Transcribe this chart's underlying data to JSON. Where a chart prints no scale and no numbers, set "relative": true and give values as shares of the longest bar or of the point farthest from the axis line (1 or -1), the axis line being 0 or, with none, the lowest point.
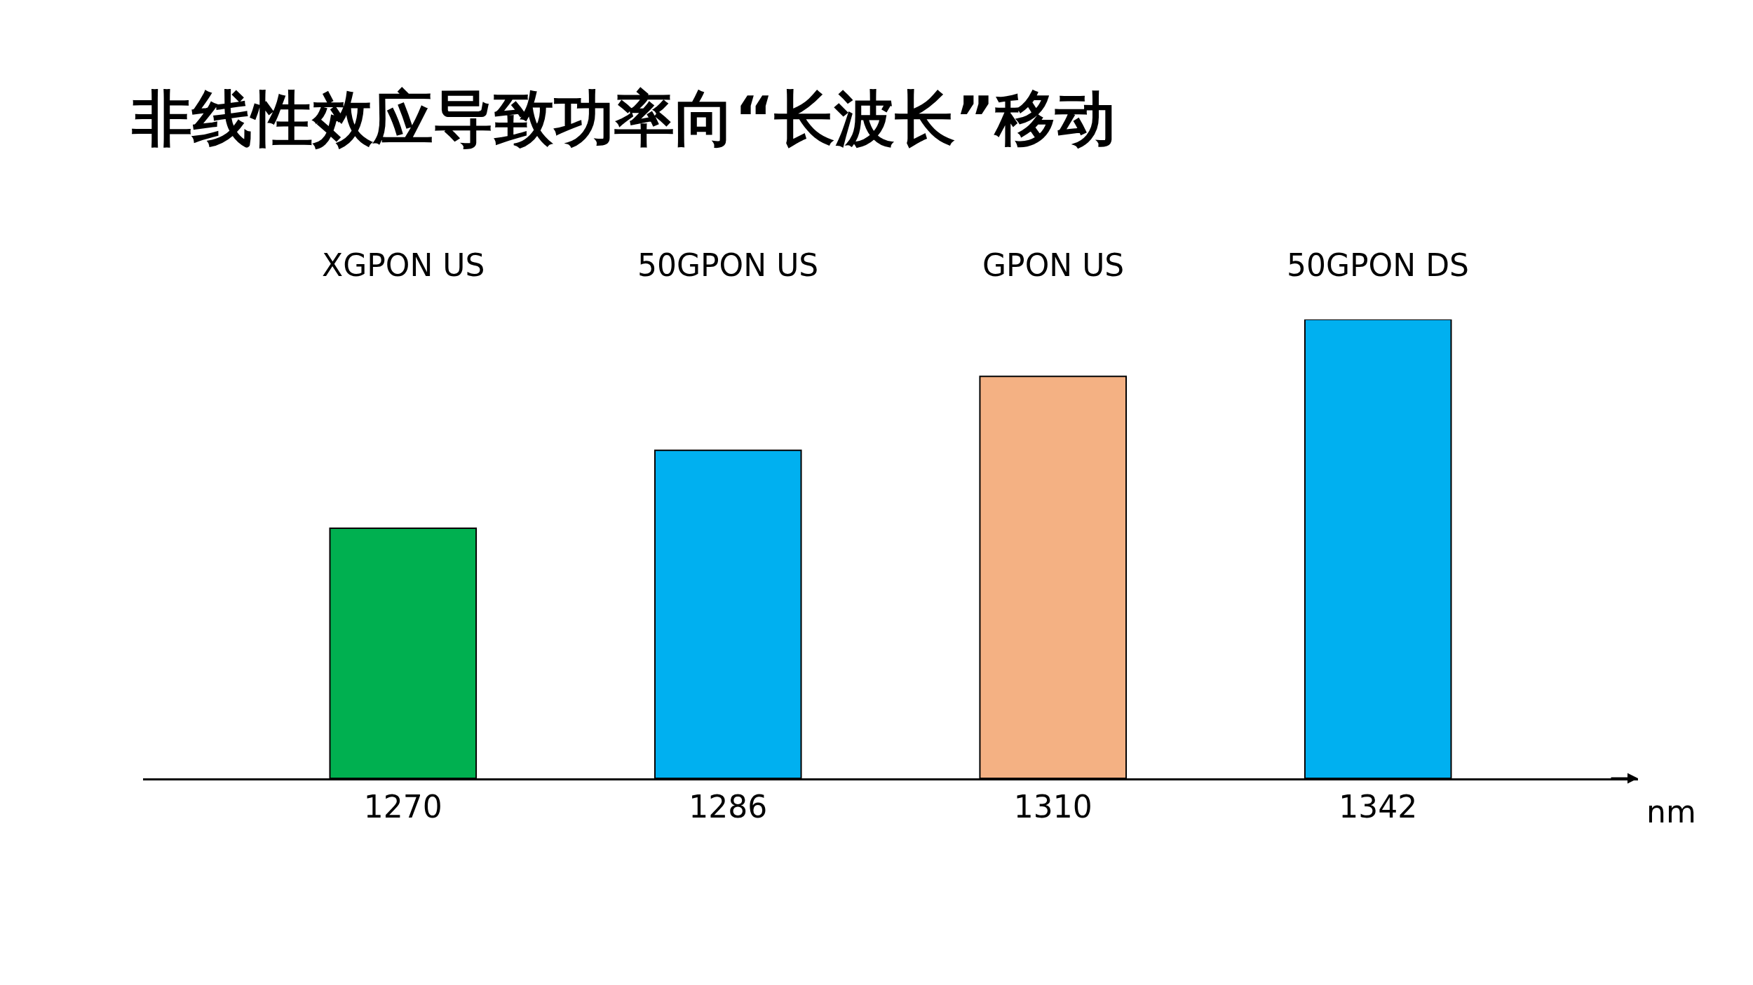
{
  "chart_data": {
    "type": "bar",
    "title": "非线性效应导致功率向“长波长”移动",
    "categories": [
      "1270",
      "1286",
      "1310",
      "1342"
    ],
    "values": [
      0.545,
      0.715,
      0.876,
      1
    ],
    "colors": [
      "#00b050",
      "#00b0f0",
      "#f4b183",
      "#00b0f0"
    ],
    "relative": true,
    "xlabel": "nm",
    "annotations": [
      "XGPON US",
      "50GPON US",
      "GPON US",
      "50GPON DS"
    ]
  }
}
